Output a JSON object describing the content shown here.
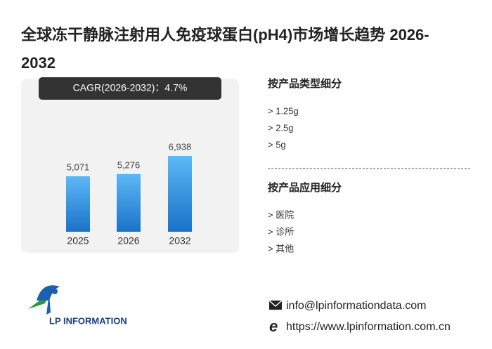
{
  "chart_data": {
    "type": "bar",
    "title": "全球冻干静脉注射用人免疫球蛋白(pH4)市场增长趋势 2026-2032",
    "annotation": "CAGR(2026-2032)：4.7%",
    "categories": [
      "2025",
      "2026",
      "2032"
    ],
    "values": [
      5071,
      5276,
      6938
    ],
    "value_labels": [
      "5,071",
      "5,276",
      "6,938"
    ],
    "color": "#1a72c8"
  },
  "segments": [
    {
      "heading": "按产品类型细分",
      "items": [
        "> 1.25g",
        "> 2.5g",
        "> 5g"
      ]
    },
    {
      "heading": "按产品应用细分",
      "items": [
        "> 医院",
        "> 诊所",
        "> 其他"
      ]
    }
  ],
  "logo": "LP INFORMATION",
  "email": "info@lpinformationdata.com",
  "website": "https://www.lpinformation.com.cn"
}
